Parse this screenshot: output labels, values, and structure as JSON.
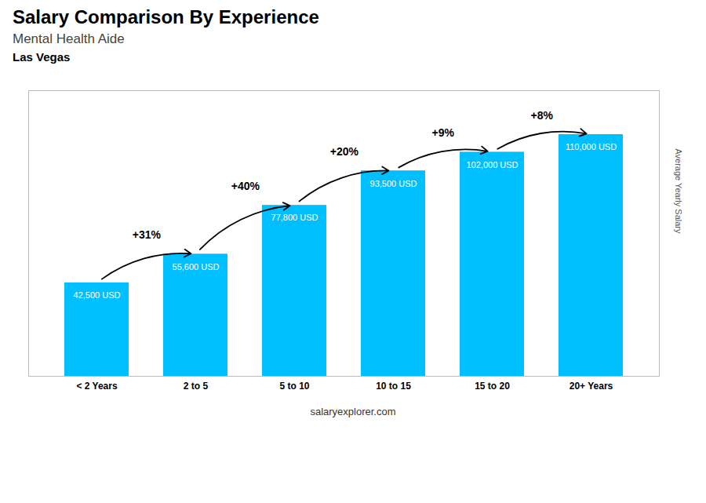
{
  "chart_data": {
    "type": "bar",
    "title": "Salary Comparison By Experience",
    "subtitle": "Mental Health Aide",
    "annotations": [
      "Las Vegas",
      "salaryexplorer.com"
    ],
    "categories": [
      "< 2 Years",
      "2 to 5",
      "5 to 10",
      "10 to 15",
      "15 to 20",
      "20+ Years"
    ],
    "values": [
      42500,
      55600,
      77800,
      93500,
      102000,
      110000
    ],
    "value_labels": [
      "42,500 USD",
      "55,600 USD",
      "77,800 USD",
      "93,500 USD",
      "102,000 USD",
      "110,000 USD"
    ],
    "data_labels": true,
    "change_labels": [
      "+31%",
      "+40%",
      "+20%",
      "+9%",
      "+8%"
    ],
    "ylabel": "Average Yearly Salary",
    "color": "#00BFFF",
    "ylim": [
      0,
      130000
    ],
    "tick_labels": "x",
    "grid": false
  }
}
